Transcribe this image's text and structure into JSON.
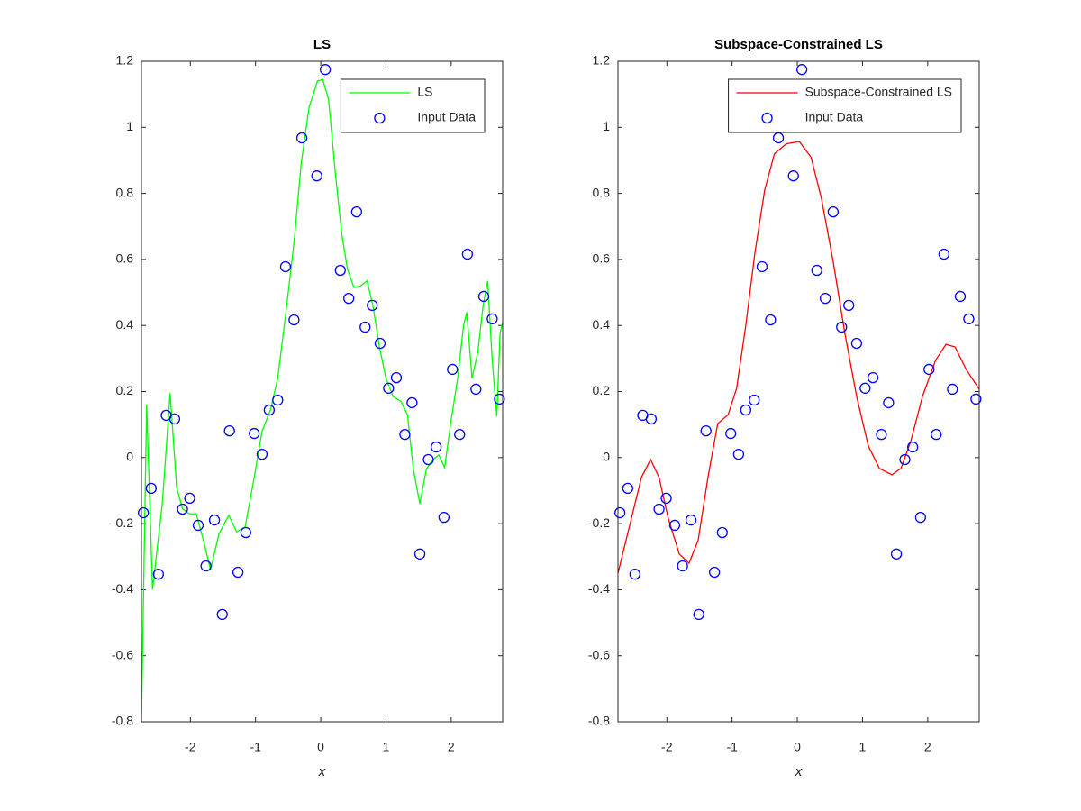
{
  "chart_data": [
    {
      "type": "line",
      "title": "LS",
      "xlabel": "x",
      "xlim": [
        -2.75,
        2.79
      ],
      "ylim": [
        -0.8,
        1.2
      ],
      "xticks": [
        -2,
        -1,
        0,
        1,
        2
      ],
      "yticks": [
        -0.8,
        -0.6,
        -0.4,
        -0.2,
        0,
        0.2,
        0.4,
        0.6,
        0.8,
        1,
        1.2
      ],
      "legend": "northeast",
      "series": [
        {
          "name": "LS",
          "color": "#00ff00",
          "mode": "line",
          "x": [
            -2.75,
            -2.67,
            -2.58,
            -2.43,
            -2.31,
            -2.21,
            -2.12,
            -2.02,
            -1.91,
            -1.8,
            -1.69,
            -1.56,
            -1.41,
            -1.29,
            -1.16,
            -1.02,
            -0.9,
            -0.77,
            -0.66,
            -0.54,
            -0.41,
            -0.3,
            -0.18,
            -0.05,
            0.03,
            0.12,
            0.22,
            0.32,
            0.41,
            0.51,
            0.61,
            0.71,
            0.8,
            0.9,
            1.0,
            1.11,
            1.23,
            1.33,
            1.42,
            1.52,
            1.62,
            1.72,
            1.81,
            1.9,
            1.99,
            2.1,
            2.19,
            2.24,
            2.32,
            2.41,
            2.49,
            2.56,
            2.63,
            2.7,
            2.75,
            2.79
          ],
          "values": [
            -0.8,
            0.16,
            -0.4,
            -0.14,
            0.195,
            -0.09,
            -0.155,
            -0.17,
            -0.17,
            -0.25,
            -0.34,
            -0.23,
            -0.175,
            -0.225,
            -0.21,
            -0.06,
            0.08,
            0.145,
            0.24,
            0.43,
            0.65,
            0.89,
            1.06,
            1.14,
            1.145,
            1.085,
            0.87,
            0.68,
            0.57,
            0.515,
            0.52,
            0.535,
            0.46,
            0.335,
            0.24,
            0.185,
            0.17,
            0.13,
            -0.035,
            -0.14,
            -0.035,
            -0.006,
            0.008,
            -0.03,
            0.1,
            0.24,
            0.4,
            0.44,
            0.24,
            0.32,
            0.46,
            0.535,
            0.294,
            0.125,
            0.376,
            0.41
          ]
        },
        {
          "name": "Input Data",
          "color": "#0000ff",
          "mode": "markers",
          "x": [
            -2.72,
            -2.6,
            -2.49,
            -2.37,
            -2.24,
            -2.12,
            -2.01,
            -1.88,
            -1.76,
            -1.63,
            -1.51,
            -1.4,
            -1.27,
            -1.15,
            -1.02,
            -0.9,
            -0.79,
            -0.66,
            -0.54,
            -0.41,
            -0.29,
            -0.06,
            0.07,
            0.3,
            0.43,
            0.55,
            0.68,
            0.79,
            0.91,
            1.04,
            1.16,
            1.29,
            1.4,
            1.52,
            1.65,
            1.77,
            1.89,
            2.02,
            2.13,
            2.25,
            2.38,
            2.5,
            2.63,
            2.74
          ],
          "values": [
            -0.167,
            -0.093,
            -0.353,
            0.128,
            0.117,
            -0.156,
            -0.123,
            -0.205,
            -0.328,
            -0.189,
            -0.475,
            0.081,
            -0.347,
            -0.227,
            0.073,
            0.01,
            0.144,
            0.174,
            0.578,
            0.417,
            0.968,
            0.853,
            1.175,
            0.567,
            0.482,
            0.744,
            0.395,
            0.461,
            0.346,
            0.21,
            0.242,
            0.07,
            0.166,
            -0.292,
            -0.006,
            0.032,
            -0.181,
            0.267,
            0.07,
            0.616,
            0.207,
            0.488,
            0.42,
            0.177
          ]
        }
      ]
    },
    {
      "type": "line",
      "title": "Subspace-Constrained LS",
      "xlabel": "x",
      "xlim": [
        -2.75,
        2.79
      ],
      "ylim": [
        -0.8,
        1.2
      ],
      "xticks": [
        -2,
        -1,
        0,
        1,
        2
      ],
      "yticks": [
        -0.8,
        -0.6,
        -0.4,
        -0.2,
        0,
        0.2,
        0.4,
        0.6,
        0.8,
        1,
        1.2
      ],
      "legend": "northeast",
      "series": [
        {
          "name": "Subspace-Constrained LS",
          "color": "#ff0000",
          "mode": "line",
          "x": [
            -2.75,
            -2.56,
            -2.39,
            -2.25,
            -2.12,
            -1.98,
            -1.81,
            -1.66,
            -1.52,
            -1.37,
            -1.22,
            -1.06,
            -0.93,
            -0.79,
            -0.65,
            -0.5,
            -0.35,
            -0.17,
            0.03,
            0.21,
            0.37,
            0.55,
            0.73,
            0.91,
            1.09,
            1.26,
            1.45,
            1.59,
            1.74,
            1.92,
            2.12,
            2.28,
            2.42,
            2.59,
            2.79
          ],
          "values": [
            -0.35,
            -0.197,
            -0.06,
            -0.006,
            -0.06,
            -0.183,
            -0.292,
            -0.32,
            -0.25,
            -0.06,
            0.103,
            0.13,
            0.21,
            0.4,
            0.62,
            0.81,
            0.92,
            0.95,
            0.957,
            0.91,
            0.785,
            0.594,
            0.376,
            0.185,
            0.035,
            -0.033,
            -0.052,
            -0.033,
            0.049,
            0.185,
            0.294,
            0.343,
            0.335,
            0.267,
            0.207
          ]
        },
        {
          "name": "Input Data",
          "color": "#0000ff",
          "mode": "markers",
          "x": [
            -2.72,
            -2.6,
            -2.49,
            -2.37,
            -2.24,
            -2.12,
            -2.01,
            -1.88,
            -1.76,
            -1.63,
            -1.51,
            -1.4,
            -1.27,
            -1.15,
            -1.02,
            -0.9,
            -0.79,
            -0.66,
            -0.54,
            -0.41,
            -0.29,
            -0.06,
            0.07,
            0.3,
            0.43,
            0.55,
            0.68,
            0.79,
            0.91,
            1.04,
            1.16,
            1.29,
            1.4,
            1.52,
            1.65,
            1.77,
            1.89,
            2.02,
            2.13,
            2.25,
            2.38,
            2.5,
            2.63,
            2.74
          ],
          "values": [
            -0.167,
            -0.093,
            -0.353,
            0.128,
            0.117,
            -0.156,
            -0.123,
            -0.205,
            -0.328,
            -0.189,
            -0.475,
            0.081,
            -0.347,
            -0.227,
            0.073,
            0.01,
            0.144,
            0.174,
            0.578,
            0.417,
            0.968,
            0.853,
            1.175,
            0.567,
            0.482,
            0.744,
            0.395,
            0.461,
            0.346,
            0.21,
            0.242,
            0.07,
            0.166,
            -0.292,
            -0.006,
            0.032,
            -0.181,
            0.267,
            0.07,
            0.616,
            0.207,
            0.488,
            0.42,
            0.177
          ]
        }
      ]
    }
  ]
}
